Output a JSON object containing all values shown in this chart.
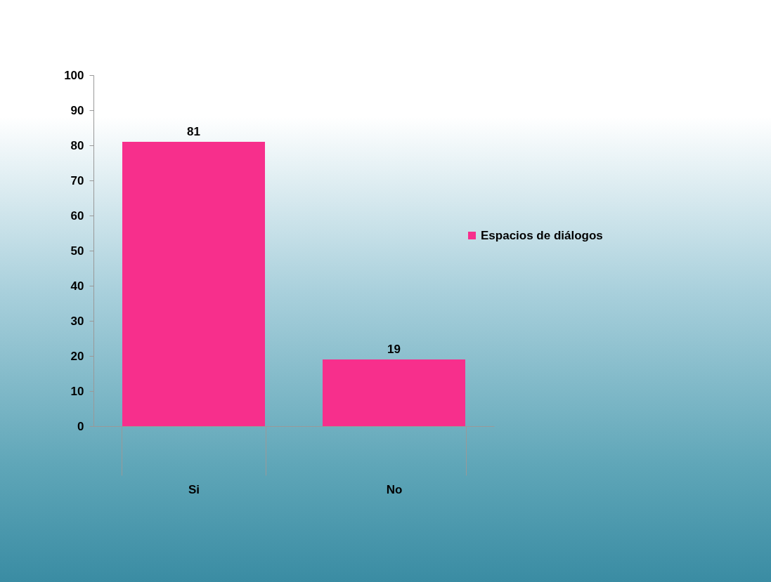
{
  "chart_data": {
    "type": "bar",
    "categories": [
      "Si",
      "No"
    ],
    "series": [
      {
        "name": "Espacios de diálogos",
        "color": "#f72f8c",
        "values": [
          81,
          19
        ]
      }
    ],
    "ylim": [
      0,
      100
    ],
    "yticks": [
      0,
      10,
      20,
      30,
      40,
      50,
      60,
      70,
      80,
      90,
      100
    ],
    "grid": false,
    "legend": "right",
    "data_labels": true
  }
}
